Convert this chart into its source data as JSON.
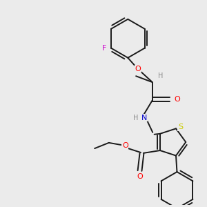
{
  "bg_color": "#ebebeb",
  "atom_colors": {
    "O": "#ff0000",
    "N": "#0000cc",
    "S": "#cccc00",
    "F": "#cc00cc",
    "H": "#888888"
  },
  "bond_color": "#1a1a1a",
  "bond_width": 1.4,
  "figsize": [
    3.0,
    3.0
  ],
  "dpi": 100
}
